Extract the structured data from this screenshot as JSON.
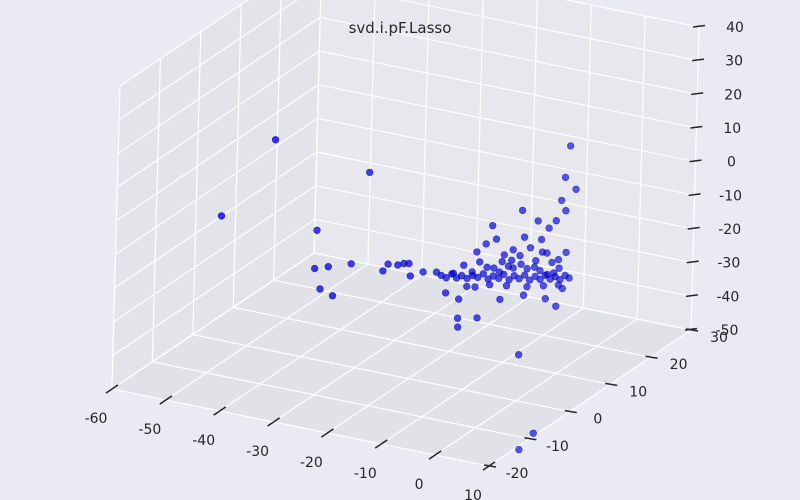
{
  "chart_data": {
    "type": "scatter3d",
    "title": "svd.i.pF.Lasso",
    "xlabel": "",
    "ylabel": "",
    "zlabel": "",
    "grid": true,
    "colors": {
      "background": "#eaeaf2",
      "point": "#0000cc"
    },
    "xlim": [
      -60,
      10
    ],
    "ylim": [
      -20,
      30
    ],
    "zlim": [
      -50,
      40
    ],
    "x_ticks": [
      -60,
      -50,
      -40,
      -30,
      -20,
      -10,
      0,
      10
    ],
    "y_ticks": [
      -20,
      -10,
      0,
      10,
      20,
      30
    ],
    "z_ticks": [
      -50,
      -40,
      -30,
      -20,
      -10,
      0,
      10,
      20,
      30,
      40
    ],
    "points": [
      [
        -50.8,
        -6.1,
        -6.8
      ],
      [
        -41.7,
        -5.4,
        18.2
      ],
      [
        -28.2,
        0.1,
        8.5
      ],
      [
        -36.1,
        -2.0,
        -9.6
      ],
      [
        -35.9,
        -2.6,
        -20.4
      ],
      [
        -34.6,
        -2.9,
        -25.8
      ],
      [
        -33.0,
        -1.9,
        -28.1
      ],
      [
        -34.5,
        -1.1,
        -20.6
      ],
      [
        -30.8,
        -0.4,
        -19.1
      ],
      [
        -25.2,
        0.0,
        -19.7
      ],
      [
        -24.5,
        0.3,
        -17.7
      ],
      [
        -23.0,
        0.7,
        -17.8
      ],
      [
        -22.1,
        1.0,
        -17.3
      ],
      [
        -21.3,
        1.2,
        -17.2
      ],
      [
        -19.1,
        1.8,
        -19.5
      ],
      [
        -21.0,
        1.2,
        -20.8
      ],
      [
        -14.9,
        1.9,
        -24.4
      ],
      [
        -14.1,
        2.6,
        -18.9
      ],
      [
        -12.7,
        3.3,
        -16.6
      ],
      [
        -12.5,
        3.9,
        -23.3
      ],
      [
        -11.5,
        3.8,
        -18.6
      ],
      [
        -10.3,
        4.0,
        -15.4
      ],
      [
        -9.5,
        4.8,
        -17.4
      ],
      [
        -8.3,
        4.9,
        -17.3
      ],
      [
        -7.7,
        5.5,
        -18.8
      ],
      [
        -6.2,
        5.7,
        -16.7
      ],
      [
        -5.7,
        6.2,
        -17.5
      ],
      [
        -4.4,
        6.4,
        -16.1
      ],
      [
        -3.7,
        7.0,
        -17.7
      ],
      [
        -2.7,
        7.5,
        -17.3
      ],
      [
        -1.9,
        7.8,
        -18.3
      ],
      [
        -0.9,
        8.3,
        -19.5
      ],
      [
        0.2,
        8.4,
        -18.8
      ],
      [
        0.8,
        8.9,
        -17.6
      ],
      [
        -10.5,
        3.5,
        -12.1
      ],
      [
        -9.4,
        4.3,
        -10.0
      ],
      [
        -7.9,
        4.8,
        -8.5
      ],
      [
        -6.6,
        5.1,
        -13.0
      ],
      [
        -5.5,
        5.8,
        -11.7
      ],
      [
        -4.5,
        6.2,
        -13.4
      ],
      [
        -2.9,
        6.6,
        -10.9
      ],
      [
        -2.3,
        7.2,
        -15.0
      ],
      [
        -1.4,
        7.6,
        -12.5
      ],
      [
        -8.3,
        4.3,
        -4.2
      ],
      [
        -4.1,
        6.0,
        0.3
      ],
      [
        -3.6,
        6.0,
        -7.5
      ],
      [
        -1.9,
        7.0,
        -2.9
      ],
      [
        -1.4,
        7.3,
        -8.5
      ],
      [
        -0.5,
        7.9,
        -5.3
      ],
      [
        0.5,
        8.3,
        -3.1
      ],
      [
        1.1,
        8.7,
        2.8
      ],
      [
        1.7,
        9.0,
        -0.3
      ],
      [
        1.4,
        9.1,
        9.4
      ],
      [
        1.9,
        9.5,
        18.6
      ],
      [
        2.9,
        9.8,
        5.8
      ],
      [
        2.1,
        8.8,
        -12.4
      ],
      [
        0.8,
        8.7,
        -14.9
      ],
      [
        -0.7,
        7.8,
        -12.7
      ],
      [
        -13.2,
        2.9,
        -26.5
      ],
      [
        -13.0,
        2.5,
        -31.8
      ],
      [
        -12.8,
        2.3,
        -34.2
      ],
      [
        -10.3,
        3.7,
        -31.8
      ],
      [
        -7.2,
        5.1,
        -26.4
      ],
      [
        -3.8,
        6.4,
        -25.1
      ],
      [
        -0.8,
        7.8,
        -26.3
      ],
      [
        0.6,
        8.6,
        -28.7
      ],
      [
        1.5,
        8.9,
        -23.4
      ],
      [
        -4.7,
        6.8,
        -43.4
      ],
      [
        -2.5,
        8.0,
        -67.0
      ],
      [
        -5.3,
        8.3,
        -73.0
      ],
      [
        -16.4,
        1.5,
        -18.4
      ],
      [
        -15.8,
        1.9,
        -19.5
      ],
      [
        -15.1,
        2.2,
        -20.2
      ],
      [
        -14.3,
        2.5,
        -19.1
      ],
      [
        -13.6,
        2.8,
        -20.3
      ],
      [
        -12.9,
        3.1,
        -19.6
      ],
      [
        -12.1,
        3.4,
        -20.4
      ],
      [
        -11.3,
        3.7,
        -19.5
      ],
      [
        -10.6,
        4.0,
        -20.1
      ],
      [
        -9.8,
        4.3,
        -19.0
      ],
      [
        -9.1,
        4.6,
        -20.6
      ],
      [
        -8.4,
        4.9,
        -19.7
      ],
      [
        -7.6,
        5.2,
        -20.4
      ],
      [
        -6.9,
        5.5,
        -19.2
      ],
      [
        -6.1,
        5.8,
        -20.8
      ],
      [
        -5.4,
        6.1,
        -19.6
      ],
      [
        -4.7,
        6.4,
        -20.5
      ],
      [
        -3.9,
        6.7,
        -19.4
      ],
      [
        -3.2,
        7.0,
        -20.9
      ],
      [
        -2.4,
        7.3,
        -19.8
      ],
      [
        -1.7,
        7.6,
        -20.7
      ],
      [
        -1.0,
        7.9,
        -19.5
      ],
      [
        -0.3,
        8.2,
        -20.6
      ],
      [
        0.4,
        8.5,
        -19.9
      ],
      [
        1.1,
        8.8,
        -20.8
      ],
      [
        1.8,
        9.1,
        -19.6
      ],
      [
        2.4,
        9.3,
        -20.3
      ],
      [
        -8.8,
        4.6,
        -22.2
      ],
      [
        -6.4,
        5.6,
        -22.5
      ],
      [
        -3.5,
        6.8,
        -22.8
      ],
      [
        -1.2,
        7.8,
        -22.6
      ],
      [
        0.9,
        8.7,
        -22.4
      ],
      [
        -7.1,
        5.3,
        -15.3
      ],
      [
        -0.1,
        8.3,
        -15.7
      ],
      [
        -10.9,
        3.8,
        -22.9
      ],
      [
        -5.8,
        5.9,
        -15.0
      ]
    ]
  }
}
